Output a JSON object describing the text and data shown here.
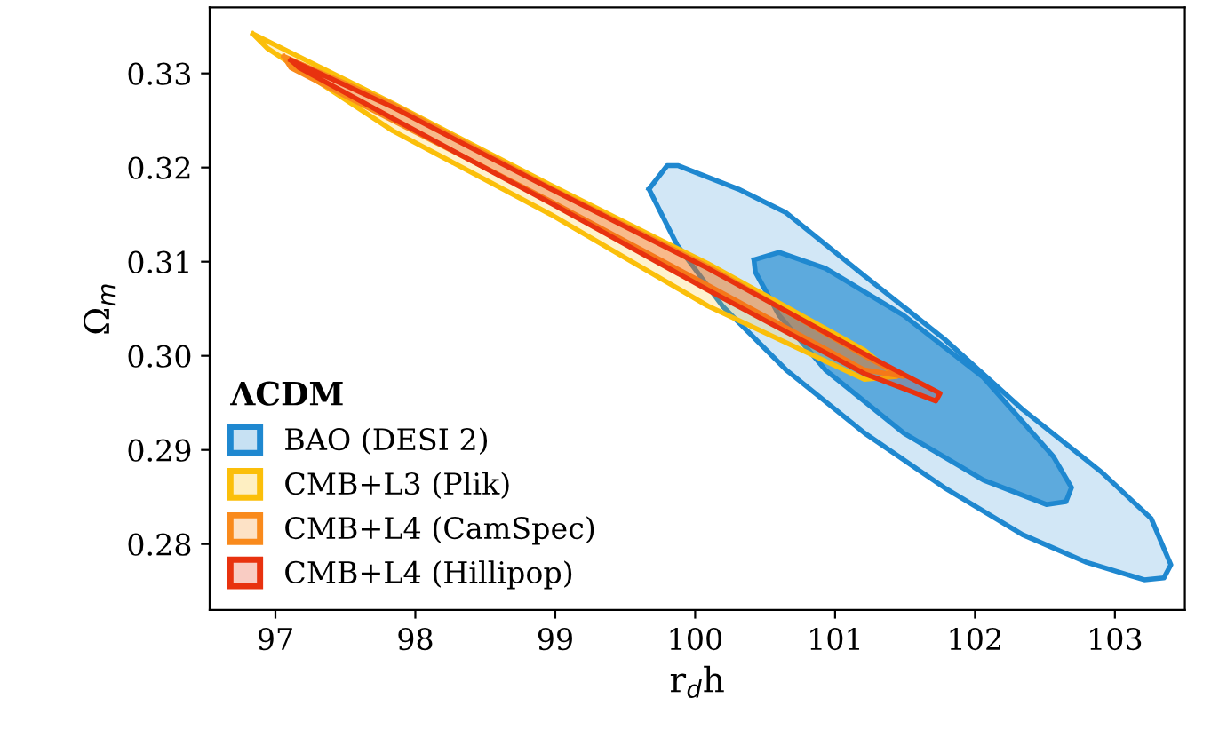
{
  "chart_data": {
    "type": "area",
    "xlabel": "r$_{d}$h",
    "ylabel": "Ω$_{m}$",
    "legend_title": "ΛCDM",
    "legend": "bottom left",
    "grid": false,
    "xlim": [
      96.53,
      103.5
    ],
    "ylim": [
      0.273,
      0.337
    ],
    "xticks": [
      97,
      98,
      99,
      100,
      101,
      102,
      103
    ],
    "yticks": [
      0.28,
      0.29,
      {
        "value": 0.3,
        "label": "0.30"
      },
      0.31,
      0.32,
      0.33
    ],
    "series": [
      {
        "name": "BAO (DESI 2)",
        "color": "#1f88d0",
        "x": [
          99.67,
          99.8,
          99.88,
          100.31,
          100.65,
          101.21,
          101.78,
          102.34,
          102.9,
          103.26,
          103.4,
          103.35,
          103.21,
          102.79,
          102.34,
          101.78,
          101.21,
          100.65,
          100.2,
          99.87,
          99.67
        ],
        "values": [
          0.3177,
          0.3202,
          0.3202,
          0.3177,
          0.3152,
          0.3085,
          0.3018,
          0.2943,
          0.2877,
          0.2827,
          0.2778,
          0.2764,
          0.2762,
          0.2781,
          0.281,
          0.286,
          0.2918,
          0.2985,
          0.3052,
          0.3118,
          0.3177
        ]
      },
      {
        "color": "#1f88d0",
        "x": [
          100.42,
          100.6,
          100.93,
          101.49,
          102.06,
          102.56,
          102.69,
          102.65,
          102.51,
          102.06,
          101.49,
          100.93,
          100.6,
          100.43,
          100.42
        ],
        "values": [
          0.3102,
          0.311,
          0.3093,
          0.3043,
          0.2977,
          0.2893,
          0.286,
          0.2845,
          0.2842,
          0.2868,
          0.2918,
          0.2985,
          0.3043,
          0.3089,
          0.3102
        ]
      },
      {
        "name": "CMB+L3 (Plik)",
        "color": "#fbbf0a",
        "x": [
          96.84,
          97.84,
          98.97,
          100.09,
          101.21,
          101.44,
          101.21,
          100.09,
          98.97,
          97.84,
          96.94,
          96.84
        ],
        "values": [
          0.3342,
          0.3268,
          0.3181,
          0.3098,
          0.3006,
          0.2978,
          0.2975,
          0.3053,
          0.315,
          0.3239,
          0.3327,
          0.3342
        ]
      },
      {
        "name": "CMB+L4 (CamSpec)",
        "color": "#f98a1c",
        "x": [
          97.06,
          97.84,
          98.97,
          100.09,
          101.21,
          101.49,
          101.21,
          100.09,
          98.97,
          97.84,
          97.11,
          97.06
        ],
        "values": [
          0.3318,
          0.3267,
          0.3178,
          0.3095,
          0.3,
          0.2978,
          0.2985,
          0.3075,
          0.3164,
          0.325,
          0.3306,
          0.3318
        ]
      },
      {
        "name": "CMB+L4 (Hillipop)",
        "color": "#e8320f",
        "x": [
          97.11,
          97.84,
          98.97,
          100.09,
          101.21,
          101.75,
          101.72,
          101.21,
          100.09,
          98.97,
          97.84,
          97.17,
          97.11
        ],
        "values": [
          0.3314,
          0.3264,
          0.3177,
          0.3093,
          0.3002,
          0.296,
          0.2952,
          0.2981,
          0.307,
          0.3162,
          0.3252,
          0.3306,
          0.3314
        ]
      }
    ]
  }
}
